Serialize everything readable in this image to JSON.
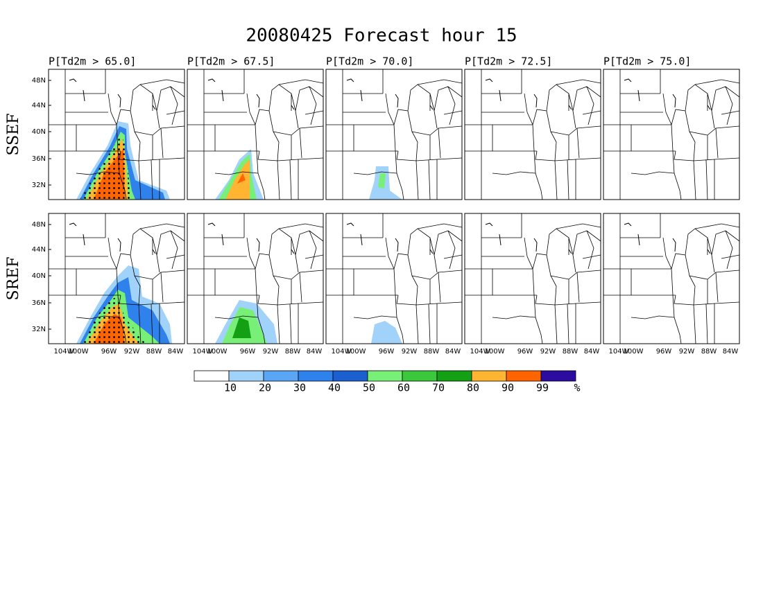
{
  "title": "20080425 Forecast hour 15",
  "panels": [
    "P[Td2m > 65.0]",
    "P[Td2m > 67.5]",
    "P[Td2m > 70.0]",
    "P[Td2m > 72.5]",
    "P[Td2m > 75.0]"
  ],
  "rows": [
    "SSEF",
    "SREF"
  ],
  "lat_labels": [
    "48N",
    "44N",
    "40N",
    "36N",
    "32N"
  ],
  "lon_labels": [
    "104W",
    "100W",
    "96W",
    "92W",
    "88W",
    "84W"
  ],
  "colorbar": {
    "colors": [
      "#ffffff",
      "#a0d2fa",
      "#5aa5f5",
      "#2f82eb",
      "#1c5fd1",
      "#78f078",
      "#3cc83c",
      "#14a014",
      "#ffb432",
      "#ff6400",
      "#2c0ca0"
    ],
    "labels": [
      "10",
      "20",
      "30",
      "40",
      "50",
      "60",
      "70",
      "80",
      "90",
      "99",
      "%"
    ]
  }
}
